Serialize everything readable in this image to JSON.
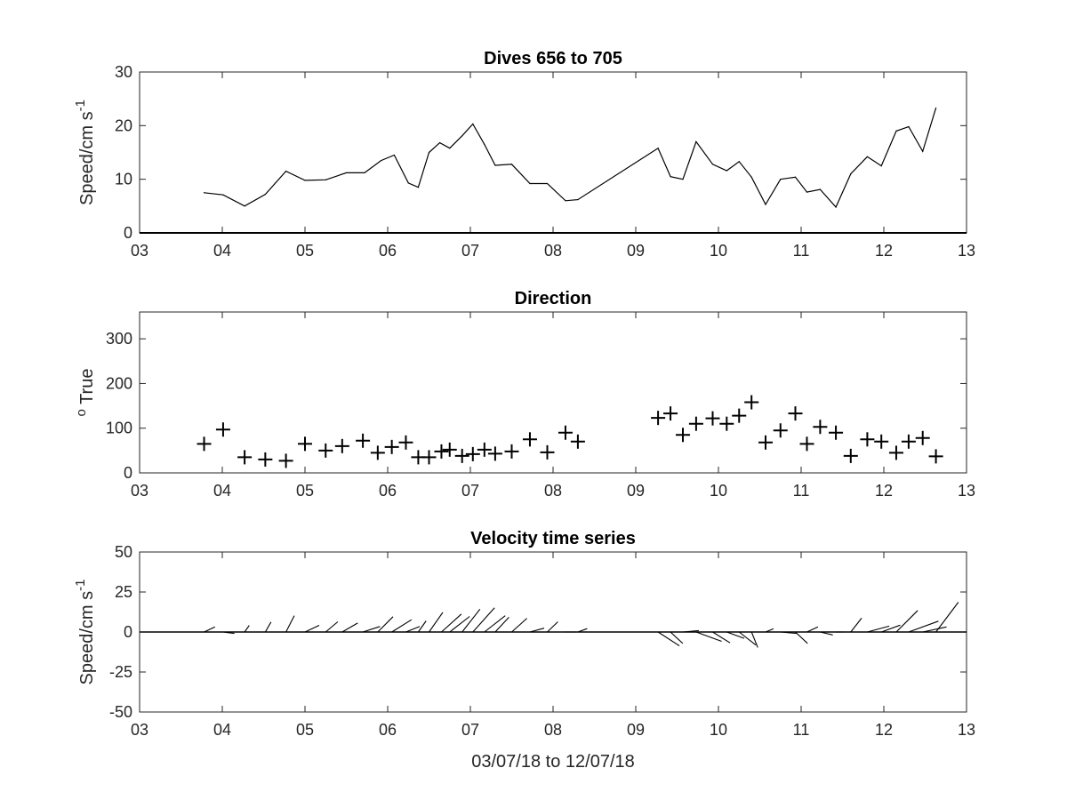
{
  "chart_data": [
    {
      "type": "line",
      "title": "Dives 656 to 705",
      "xlabel": "",
      "ylabel": "Speed/cm s",
      "ylabel_superscript": "-1",
      "xlim": [
        3,
        13
      ],
      "ylim": [
        0,
        30
      ],
      "xticks": [
        "03",
        "04",
        "05",
        "06",
        "07",
        "08",
        "09",
        "10",
        "11",
        "12",
        "13"
      ],
      "yticks": [
        "0",
        "10",
        "20",
        "30"
      ],
      "series": [
        {
          "x": [
            3.78,
            4.01,
            4.27,
            4.52,
            4.77,
            5.0,
            5.25,
            5.5,
            5.72,
            5.92,
            6.08,
            6.25,
            6.37,
            6.5,
            6.63,
            6.75,
            6.9,
            7.03,
            7.17,
            7.3,
            7.5,
            7.72,
            7.93,
            8.15,
            8.3,
            9.27,
            9.42,
            9.57,
            9.73,
            9.93,
            10.1,
            10.25,
            10.4,
            10.57,
            10.75,
            10.93,
            11.07,
            11.23,
            11.42,
            11.6,
            11.8,
            11.97,
            12.15,
            12.3,
            12.47,
            12.63
          ],
          "y": [
            7.5,
            7.1,
            5.0,
            7.2,
            11.5,
            9.8,
            9.9,
            11.2,
            11.2,
            13.5,
            14.5,
            9.3,
            8.5,
            15.0,
            16.8,
            15.8,
            18.1,
            20.3,
            16.5,
            12.6,
            12.8,
            9.2,
            9.2,
            6.0,
            6.2,
            15.8,
            10.5,
            10.0,
            17.0,
            12.8,
            11.6,
            13.3,
            10.4,
            5.3,
            10.0,
            10.4,
            7.6,
            8.1,
            4.8,
            11.0,
            14.2,
            12.5,
            19.0,
            19.8,
            15.2,
            23.3
          ]
        }
      ]
    },
    {
      "type": "scatter",
      "title": "Direction",
      "xlabel": "",
      "ylabel": "True",
      "ylabel_prefix_superscript": "o",
      "xlim": [
        3,
        13
      ],
      "ylim": [
        0,
        360
      ],
      "xticks": [
        "03",
        "04",
        "05",
        "06",
        "07",
        "08",
        "09",
        "10",
        "11",
        "12",
        "13"
      ],
      "yticks": [
        "0",
        "100",
        "200",
        "300"
      ],
      "marker": "+",
      "series": [
        {
          "x": [
            3.78,
            4.01,
            4.27,
            4.52,
            4.77,
            5.0,
            5.25,
            5.45,
            5.7,
            5.88,
            6.05,
            6.22,
            6.37,
            6.5,
            6.65,
            6.75,
            6.9,
            7.03,
            7.17,
            7.3,
            7.5,
            7.72,
            7.93,
            8.15,
            8.3,
            9.27,
            9.42,
            9.57,
            9.73,
            9.93,
            10.1,
            10.25,
            10.4,
            10.57,
            10.75,
            10.93,
            11.07,
            11.23,
            11.42,
            11.6,
            11.8,
            11.97,
            12.15,
            12.3,
            12.47,
            12.63
          ],
          "y": [
            65,
            97,
            35,
            30,
            27,
            65,
            50,
            60,
            72,
            45,
            58,
            68,
            35,
            35,
            48,
            52,
            38,
            42,
            52,
            43,
            48,
            75,
            46,
            90,
            70,
            123,
            133,
            85,
            110,
            122,
            110,
            128,
            158,
            68,
            95,
            133,
            65,
            103,
            90,
            38,
            75,
            70,
            45,
            70,
            78,
            37
          ]
        }
      ]
    },
    {
      "type": "quiver",
      "title": "Velocity time series",
      "xlabel": "03/07/18 to 12/07/18",
      "ylabel": "Speed/cm s",
      "ylabel_superscript": "-1",
      "xlim": [
        3,
        13
      ],
      "ylim": [
        -50,
        50
      ],
      "xticks": [
        "03",
        "04",
        "05",
        "06",
        "07",
        "08",
        "09",
        "10",
        "11",
        "12",
        "13"
      ],
      "yticks": [
        "-50",
        "-25",
        "0",
        "25",
        "50"
      ],
      "baseline": 0,
      "sticks": {
        "x": [
          3.78,
          4.01,
          4.27,
          4.52,
          4.77,
          5.0,
          5.25,
          5.45,
          5.7,
          5.88,
          6.05,
          6.22,
          6.37,
          6.5,
          6.65,
          6.75,
          6.9,
          7.03,
          7.17,
          7.3,
          7.5,
          7.72,
          7.93,
          8.15,
          8.3,
          9.27,
          9.42,
          9.57,
          9.73,
          9.93,
          10.1,
          10.25,
          10.4,
          10.57,
          10.75,
          10.93,
          11.07,
          11.23,
          11.42,
          11.6,
          11.8,
          11.97,
          12.15,
          12.3,
          12.47,
          12.63
        ],
        "speed": [
          7.5,
          7.1,
          5.0,
          7.2,
          11.5,
          9.8,
          9.9,
          11.2,
          11.2,
          13.5,
          14.5,
          9.3,
          8.5,
          15.0,
          16.8,
          15.8,
          18.1,
          20.3,
          16.5,
          12.6,
          12.8,
          9.2,
          9.2,
          6.0,
          6.2,
          15.8,
          10.5,
          10.0,
          17.0,
          12.8,
          11.6,
          13.3,
          10.4,
          5.3,
          10.0,
          10.4,
          7.6,
          8.1,
          4.8,
          11.0,
          14.2,
          12.5,
          19.0,
          19.8,
          15.2,
          23.3
        ],
        "direction": [
          65,
          97,
          35,
          30,
          27,
          65,
          50,
          60,
          72,
          45,
          58,
          68,
          35,
          35,
          48,
          52,
          38,
          42,
          52,
          43,
          48,
          75,
          46,
          90,
          70,
          123,
          133,
          85,
          110,
          122,
          110,
          128,
          158,
          68,
          95,
          133,
          65,
          103,
          90,
          38,
          75,
          70,
          45,
          70,
          78,
          37
        ]
      }
    }
  ]
}
